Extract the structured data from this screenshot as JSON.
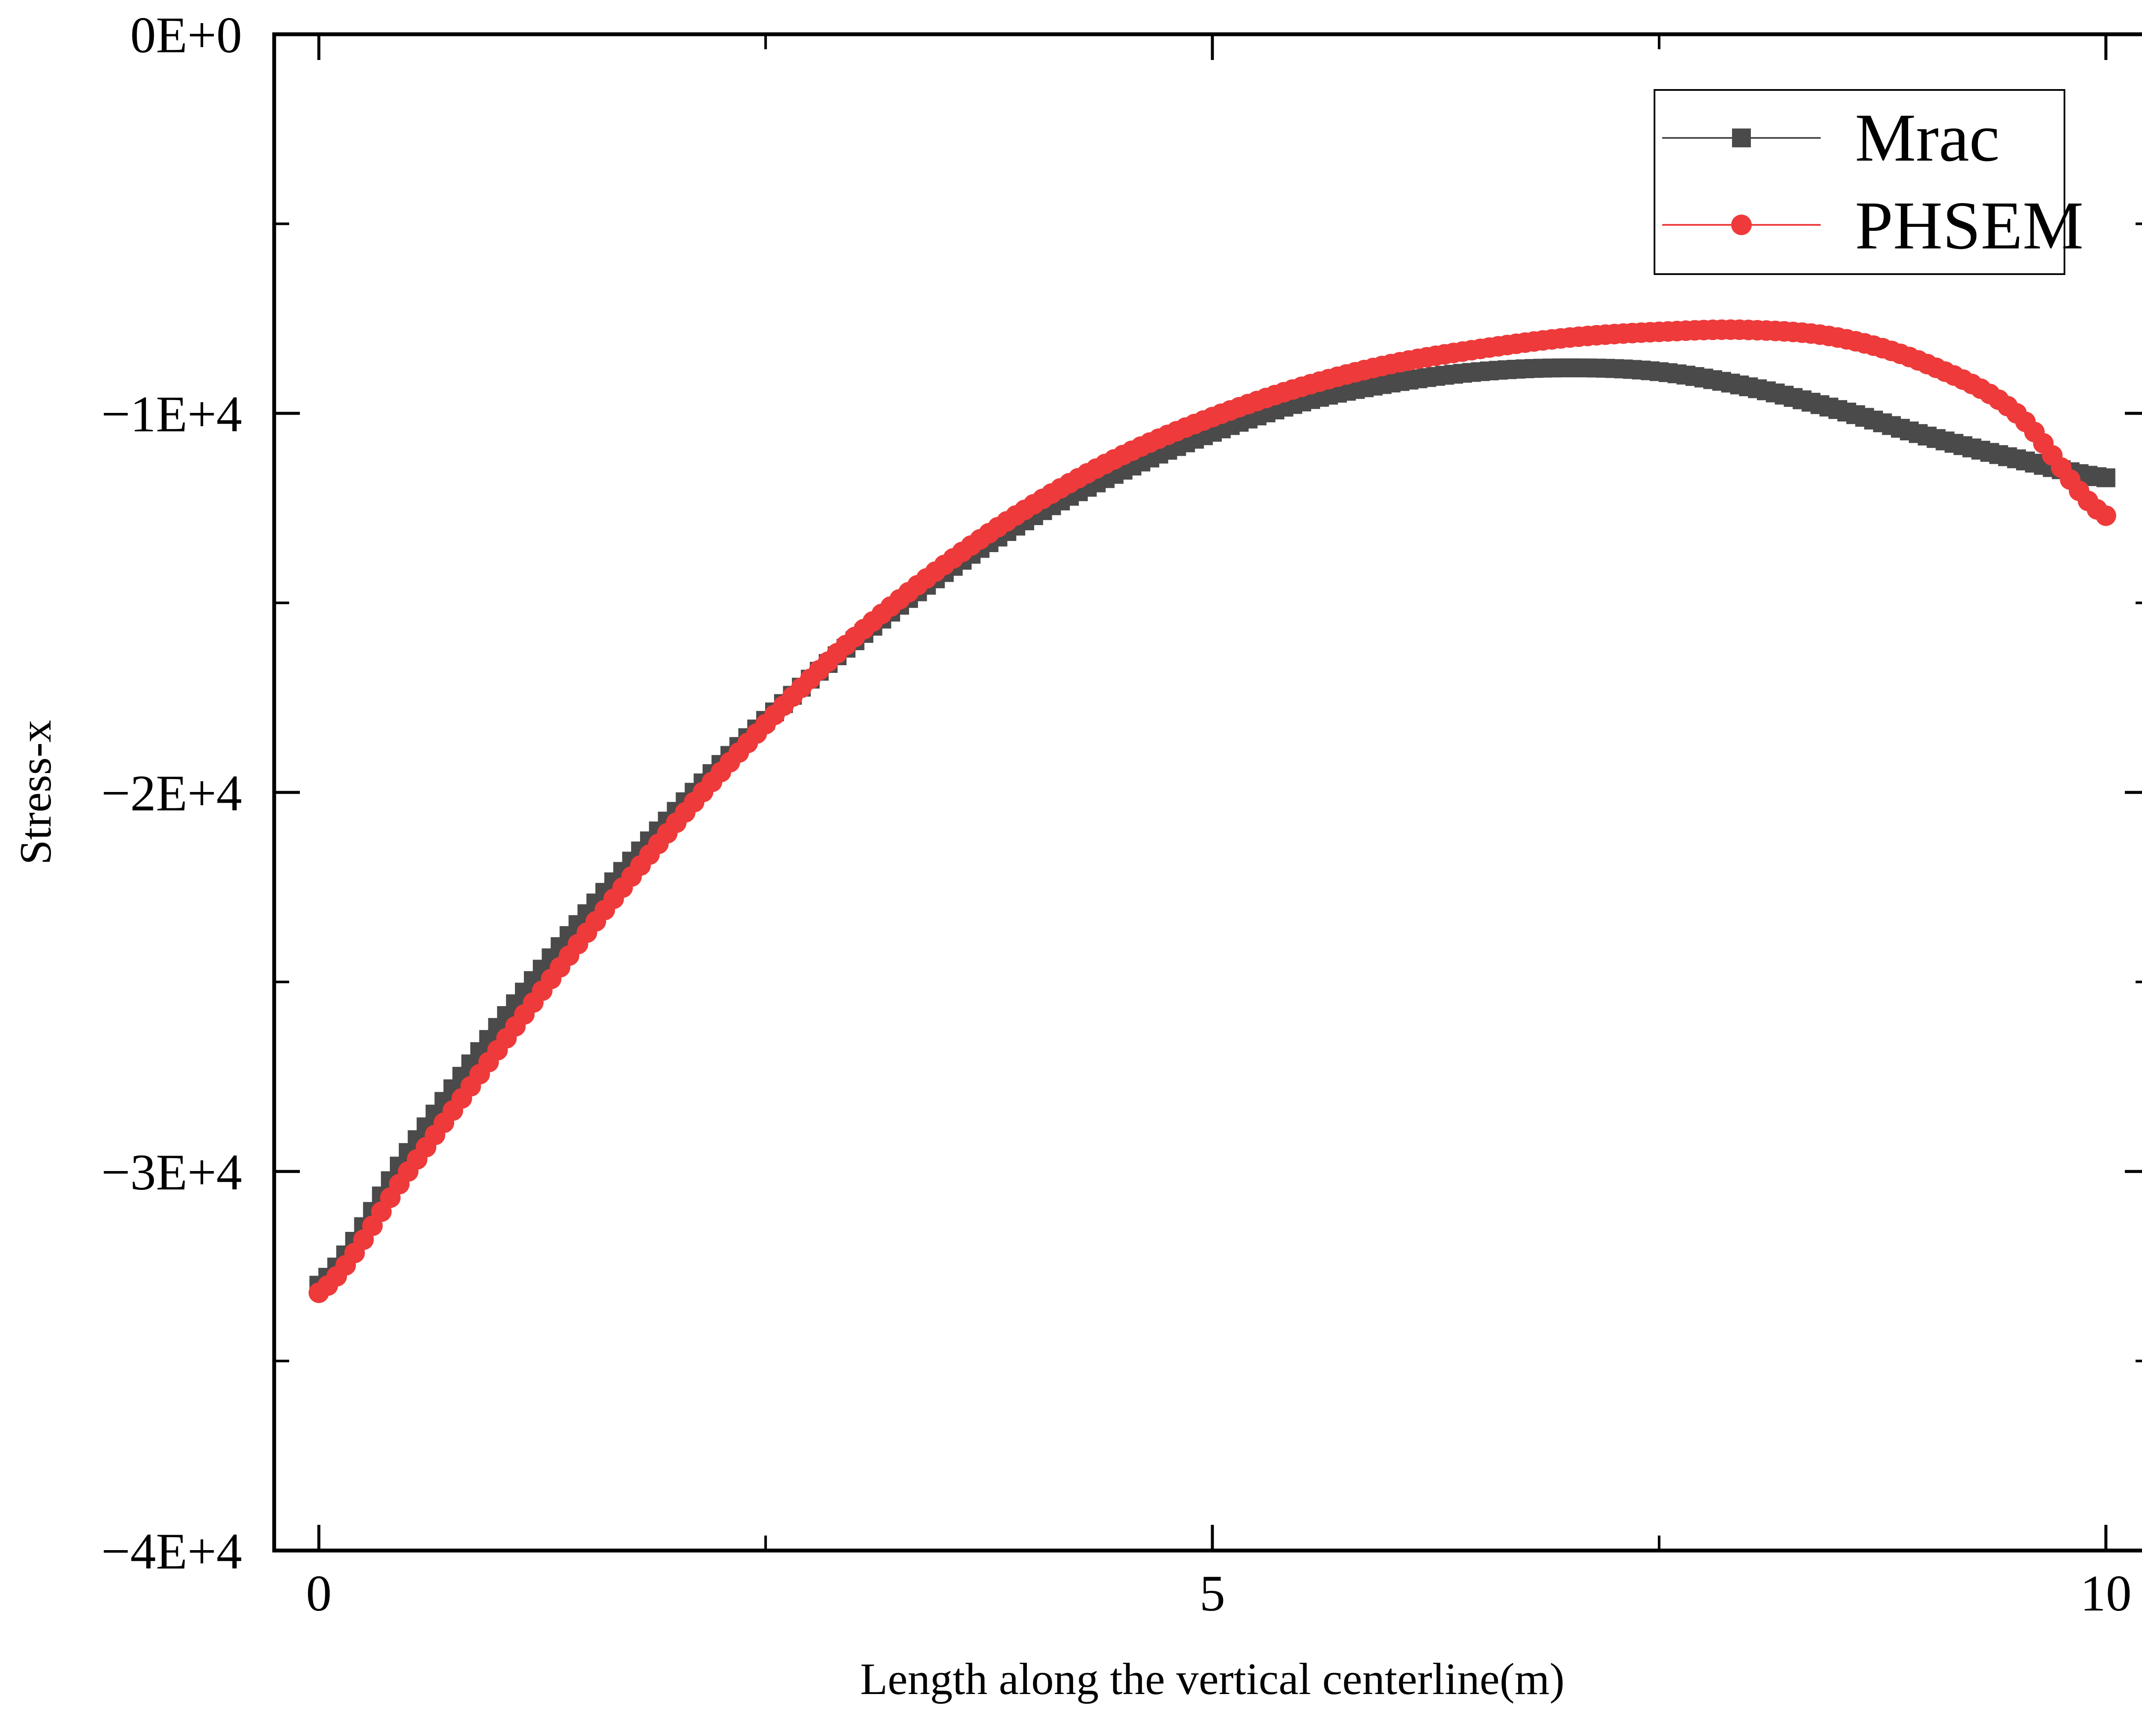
{
  "chart_data": {
    "type": "scatter",
    "title": "",
    "xlabel": "Length along the vertical centerline(m)",
    "ylabel": "Stress-x",
    "xlim": [
      -0.25,
      10.25
    ],
    "ylim": [
      -40000,
      0
    ],
    "x_ticks": [
      0,
      5,
      10
    ],
    "x_tick_labels": [
      "0",
      "5",
      "10"
    ],
    "y_ticks": [
      0,
      -10000,
      -20000,
      -30000,
      -40000
    ],
    "y_tick_labels": [
      "0E+0",
      "−1E+4",
      "−2E+4",
      "−3E+4",
      "−4E+4"
    ],
    "grid": false,
    "legend_position": "top-right",
    "x": [
      0,
      0.5,
      1,
      1.5,
      2,
      2.5,
      3,
      3.5,
      4,
      4.5,
      5,
      5.5,
      6,
      6.5,
      7,
      7.5,
      8,
      8.5,
      9,
      9.5,
      10
    ],
    "series": [
      {
        "name": "Mrac",
        "color": "#4a4a4a",
        "marker": "square",
        "values": [
          -33000,
          -29500,
          -26200,
          -23200,
          -20500,
          -18100,
          -16000,
          -14200,
          -12700,
          -11500,
          -10500,
          -9700,
          -9200,
          -8900,
          -8800,
          -8900,
          -9300,
          -9900,
          -10600,
          -11200,
          -11700
        ]
      },
      {
        "name": "PHSEM",
        "color": "#ee3a3a",
        "marker": "circle",
        "values": [
          -33200,
          -30000,
          -26800,
          -23700,
          -20800,
          -18200,
          -15900,
          -14000,
          -12400,
          -11100,
          -10100,
          -9300,
          -8700,
          -8300,
          -8000,
          -7850,
          -7800,
          -8000,
          -8700,
          -10000,
          -12700
        ]
      }
    ]
  }
}
